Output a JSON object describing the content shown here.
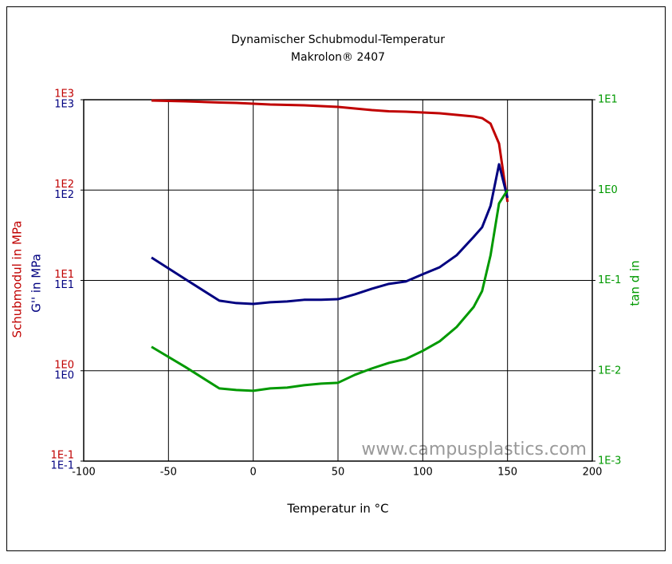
{
  "chart_data": {
    "type": "line",
    "title": "Dynamischer Schubmodul-Temperatur",
    "subtitle": "Makrolon® 2407",
    "xlabel": "Temperatur in °C",
    "watermark": "www.campusplastics.com",
    "xlim": [
      -100,
      200
    ],
    "xticks": [
      -100,
      -50,
      0,
      50,
      100,
      150,
      200
    ],
    "ylim": [
      0.1,
      1000
    ],
    "log": true,
    "grid": true,
    "yaxes": [
      {
        "label": "Schubmodul in MPa",
        "color": "#c00000",
        "ticks": [
          {
            "value": 1000,
            "label": "1E3"
          },
          {
            "value": 100,
            "label": "1E2"
          },
          {
            "value": 10,
            "label": "1E1"
          },
          {
            "value": 1,
            "label": "1E0"
          },
          {
            "value": 0.1,
            "label": "1E-1"
          }
        ]
      },
      {
        "label": "G'' in MPa",
        "color": "#000080",
        "ticks": [
          {
            "value": 1000,
            "label": "1E3"
          },
          {
            "value": 100,
            "label": "1E2"
          },
          {
            "value": 10,
            "label": "1E1"
          },
          {
            "value": 1,
            "label": "1E0"
          },
          {
            "value": 0.1,
            "label": "1E-1"
          }
        ]
      }
    ],
    "y2label": "tan d in",
    "y2color": "#009900",
    "y2lim": [
      0.001,
      10
    ],
    "y2ticks": [
      {
        "value": 10,
        "label": "1E1"
      },
      {
        "value": 1,
        "label": "1E0"
      },
      {
        "value": 0.1,
        "label": "1E-1"
      },
      {
        "value": 0.01,
        "label": "1E-2"
      },
      {
        "value": 0.001,
        "label": "1E-3"
      }
    ],
    "x": [
      -60,
      -40,
      -20,
      -10,
      0,
      10,
      20,
      30,
      40,
      50,
      60,
      70,
      80,
      90,
      100,
      110,
      120,
      130,
      135,
      140,
      145,
      150
    ],
    "series": [
      {
        "name": "Schubmodul",
        "color": "#c00000",
        "values": [
          980,
          960,
          931,
          922,
          903,
          885,
          876,
          867,
          850,
          833,
          800,
          768,
          745,
          737,
          722,
          708,
          680,
          653,
          626,
          543,
          327,
          74
        ]
      },
      {
        "name": "G''",
        "color": "#000080",
        "values": [
          17.9,
          10.3,
          5.97,
          5.61,
          5.49,
          5.73,
          5.85,
          6.1,
          6.1,
          6.2,
          7.02,
          8.09,
          9.15,
          9.72,
          11.7,
          14.0,
          19.0,
          30.3,
          38.7,
          67.0,
          193,
          82
        ]
      },
      {
        "name": "tan d",
        "color": "#009900",
        "axis": "y2",
        "values": [
          0.0184,
          0.011,
          0.00638,
          0.00613,
          0.006,
          0.00638,
          0.00651,
          0.00692,
          0.00721,
          0.00736,
          0.00902,
          0.0106,
          0.0122,
          0.0135,
          0.0166,
          0.0212,
          0.0305,
          0.0507,
          0.0762,
          0.19,
          0.713,
          1.0
        ]
      }
    ]
  }
}
